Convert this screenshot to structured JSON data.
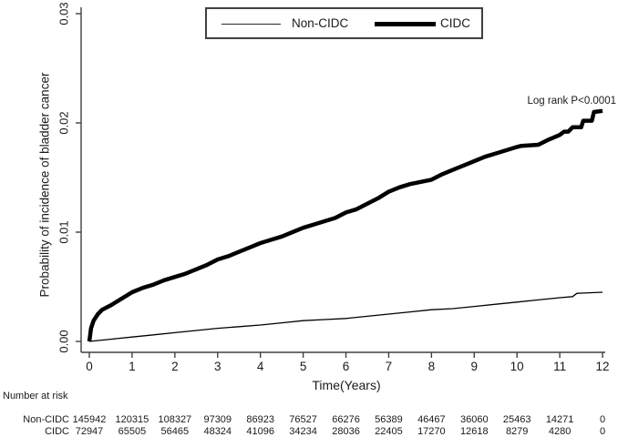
{
  "figure": {
    "background_color": "#ffffff",
    "axis_color": "#404040",
    "curve_color": "#000000",
    "text_color": "#1a1a1a"
  },
  "legend": {
    "items": [
      {
        "label": "Non-CIDC",
        "line_weight": "thin"
      },
      {
        "label": "CIDC",
        "line_weight": "thick"
      }
    ]
  },
  "annotation": "Log rank P<0.0001",
  "chart_data": {
    "type": "line",
    "title": "",
    "xlabel": "Time(Years)",
    "ylabel": "Probability of incidence of bladder cancer",
    "xlim": [
      0,
      12
    ],
    "ylim": [
      0,
      0.03
    ],
    "xticks": [
      0,
      1,
      2,
      3,
      4,
      5,
      6,
      7,
      8,
      9,
      10,
      11,
      12
    ],
    "ytick_labels": [
      "0.00",
      "0.01",
      "0.02",
      "0.03"
    ],
    "ytick_values": [
      0,
      0.01,
      0.02,
      0.03
    ],
    "grid": false,
    "legend_position": "top-center",
    "annotation": "Log rank P<0.0001",
    "series": [
      {
        "name": "Non-CIDC",
        "stroke_width": 1.3,
        "points": [
          [
            0,
            0.0
          ],
          [
            0.5,
            0.0002
          ],
          [
            1,
            0.0004
          ],
          [
            1.5,
            0.0006
          ],
          [
            2,
            0.0008
          ],
          [
            2.5,
            0.001
          ],
          [
            3,
            0.0012
          ],
          [
            3.5,
            0.00135
          ],
          [
            4,
            0.0015
          ],
          [
            4.5,
            0.0017
          ],
          [
            5,
            0.0019
          ],
          [
            5.5,
            0.002
          ],
          [
            6,
            0.0021
          ],
          [
            6.5,
            0.0023
          ],
          [
            7,
            0.0025
          ],
          [
            7.5,
            0.0027
          ],
          [
            8,
            0.0029
          ],
          [
            8.5,
            0.003
          ],
          [
            9,
            0.0032
          ],
          [
            9.5,
            0.0034
          ],
          [
            10,
            0.0036
          ],
          [
            10.5,
            0.0038
          ],
          [
            11,
            0.004
          ],
          [
            11.3,
            0.0041
          ],
          [
            11.4,
            0.0044
          ],
          [
            12,
            0.0045
          ]
        ]
      },
      {
        "name": "CIDC",
        "stroke_width": 4.5,
        "points": [
          [
            0,
            0.0
          ],
          [
            0.04,
            0.0012
          ],
          [
            0.1,
            0.0019
          ],
          [
            0.2,
            0.0025
          ],
          [
            0.3,
            0.0029
          ],
          [
            0.5,
            0.0033
          ],
          [
            0.75,
            0.0039
          ],
          [
            1,
            0.0045
          ],
          [
            1.25,
            0.0049
          ],
          [
            1.5,
            0.0052
          ],
          [
            1.75,
            0.0056
          ],
          [
            2,
            0.0059
          ],
          [
            2.25,
            0.0062
          ],
          [
            2.5,
            0.0066
          ],
          [
            2.75,
            0.007
          ],
          [
            3,
            0.0075
          ],
          [
            3.25,
            0.0078
          ],
          [
            3.5,
            0.0082
          ],
          [
            3.75,
            0.0086
          ],
          [
            4,
            0.009
          ],
          [
            4.25,
            0.0093
          ],
          [
            4.5,
            0.0096
          ],
          [
            4.75,
            0.01
          ],
          [
            5,
            0.0104
          ],
          [
            5.25,
            0.0107
          ],
          [
            5.5,
            0.011
          ],
          [
            5.75,
            0.0113
          ],
          [
            6,
            0.0118
          ],
          [
            6.25,
            0.0121
          ],
          [
            6.5,
            0.0126
          ],
          [
            6.75,
            0.0131
          ],
          [
            7,
            0.0137
          ],
          [
            7.25,
            0.0141
          ],
          [
            7.5,
            0.0144
          ],
          [
            7.75,
            0.0146
          ],
          [
            8,
            0.0148
          ],
          [
            8.25,
            0.0153
          ],
          [
            8.5,
            0.0157
          ],
          [
            8.75,
            0.0161
          ],
          [
            9,
            0.0165
          ],
          [
            9.25,
            0.0169
          ],
          [
            9.5,
            0.0172
          ],
          [
            9.75,
            0.0175
          ],
          [
            10,
            0.0178
          ],
          [
            10.1,
            0.0179
          ],
          [
            10.5,
            0.018
          ],
          [
            10.7,
            0.0184
          ],
          [
            11,
            0.0189
          ],
          [
            11.1,
            0.0192
          ],
          [
            11.2,
            0.0192
          ],
          [
            11.3,
            0.0196
          ],
          [
            11.5,
            0.0196
          ],
          [
            11.55,
            0.0202
          ],
          [
            11.75,
            0.0202
          ],
          [
            11.8,
            0.021
          ],
          [
            12,
            0.0211
          ]
        ]
      }
    ]
  },
  "risk_table": {
    "title": "Number at risk",
    "rows": [
      {
        "label": "Non-CIDC",
        "values": [
          145942,
          120315,
          108327,
          97309,
          86923,
          76527,
          66276,
          56389,
          46467,
          36060,
          25463,
          14271,
          0
        ]
      },
      {
        "label": "CIDC",
        "values": [
          72947,
          65505,
          56465,
          48324,
          41096,
          34234,
          28036,
          22405,
          17270,
          12618,
          8279,
          4280,
          0
        ]
      }
    ]
  }
}
